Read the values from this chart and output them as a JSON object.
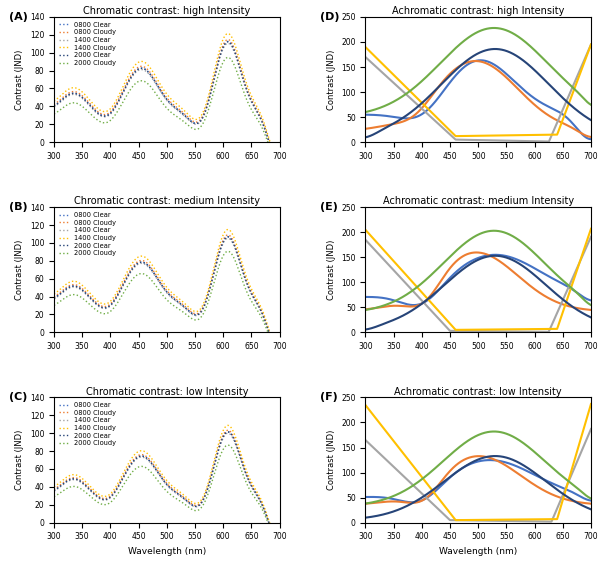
{
  "titles": {
    "A": "Chromatic contrast: high Intensity",
    "B": "Chromatic contrast: medium Intensity",
    "C": "Chromatic contrast: low Intensity",
    "D": "Achromatic contrast: high Intensity",
    "E": "Achromatic contrast: medium Intensity",
    "F": "Achromatic contrast: low Intensity"
  },
  "panel_labels": [
    "(A)",
    "(B)",
    "(C)",
    "(D)",
    "(E)",
    "(F)"
  ],
  "legend_labels": [
    "0800 Clear",
    "0800 Cloudy",
    "1400 Clear",
    "1400 Cloudy",
    "2000 Clear",
    "2000 Cloudy"
  ],
  "chromatic_colors": [
    "#4472C4",
    "#ED7D31",
    "#A5A5A5",
    "#FFC000",
    "#264478",
    "#70AD47"
  ],
  "achromatic_colors": [
    "#4472C4",
    "#ED7D31",
    "#A5A5A5",
    "#FFC000",
    "#264478",
    "#70AD47"
  ],
  "chromatic_ylim": [
    0,
    140
  ],
  "chromatic_yticks": [
    0,
    20,
    40,
    60,
    80,
    100,
    120,
    140
  ],
  "achromatic_ylim": [
    0,
    250
  ],
  "achromatic_yticks": [
    0,
    50,
    100,
    150,
    200,
    250
  ],
  "xlim": [
    300,
    700
  ],
  "xticks": [
    300,
    350,
    400,
    450,
    500,
    550,
    600,
    650,
    700
  ],
  "ylabel_chromatic": "Contrast (JND)",
  "ylabel_achromatic": "Contrast (JND)",
  "xlabel": "Wavelength (nm)"
}
